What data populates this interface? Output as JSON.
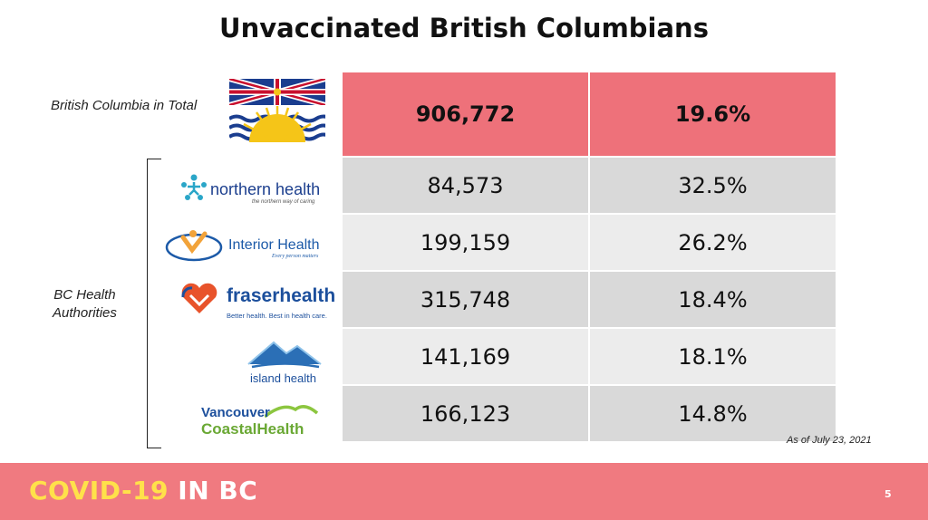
{
  "title": "Unvaccinated British Columbians",
  "labels": {
    "bc_total": "British Columbia in Total",
    "bc_authorities_line1": "BC Health",
    "bc_authorities_line2": "Authorities"
  },
  "rows": [
    {
      "region": "British Columbia in Total",
      "count": "906,772",
      "percent": "19.6%"
    },
    {
      "region": "northern health",
      "tagline": "the northern way of caring",
      "count": "84,573",
      "percent": "32.5%"
    },
    {
      "region": "Interior Health",
      "tagline": "Every person matters",
      "count": "199,159",
      "percent": "26.2%"
    },
    {
      "region": "fraserhealth",
      "tagline": "Better health. Best in health care.",
      "count": "315,748",
      "percent": "18.4%"
    },
    {
      "region": "island health",
      "count": "141,169",
      "percent": "18.1%"
    },
    {
      "region_line1": "Vancouver",
      "region_line2": "CoastalHealth",
      "count": "166,123",
      "percent": "14.8%"
    }
  ],
  "as_of": "As of July 23, 2021",
  "footer": {
    "brand_part1": "COVID-19",
    "brand_part2": "IN BC",
    "page_number": "5"
  },
  "colors": {
    "highlight": "#ee717a",
    "row_dark": "#d9d9d9",
    "row_light": "#ececec",
    "footer": "#f07a80",
    "brand_yellow": "#ffe14a"
  }
}
